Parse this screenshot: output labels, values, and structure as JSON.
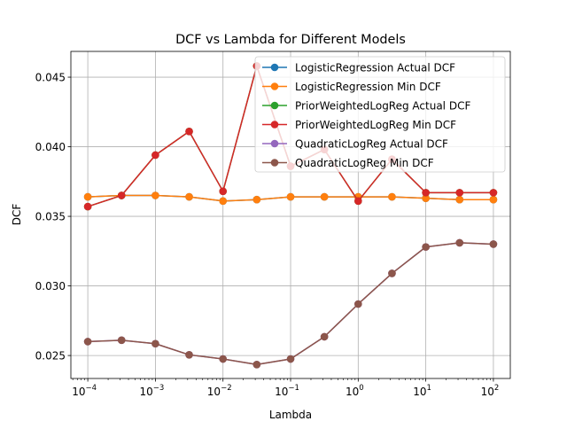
{
  "chart_data": {
    "type": "line",
    "title": "DCF vs Lambda for Different Models",
    "xlabel": "Lambda",
    "ylabel": "DCF",
    "xscale": "log",
    "xlim": [
      5.62e-05,
      177.8
    ],
    "ylim": [
      0.02335,
      0.04685
    ],
    "grid": true,
    "legend_position": "top-right",
    "x": [
      0.0001,
      0.000316,
      0.001,
      0.00316,
      0.01,
      0.0316,
      0.1,
      0.316,
      1,
      3.16,
      10,
      31.6,
      100
    ],
    "x_ticks": [
      {
        "value": 0.0001,
        "base": "10",
        "exp": "−4"
      },
      {
        "value": 0.001,
        "base": "10",
        "exp": "−3"
      },
      {
        "value": 0.01,
        "base": "10",
        "exp": "−2"
      },
      {
        "value": 0.1,
        "base": "10",
        "exp": "−1"
      },
      {
        "value": 1,
        "base": "10",
        "exp": "0"
      },
      {
        "value": 10,
        "base": "10",
        "exp": "1"
      },
      {
        "value": 100,
        "base": "10",
        "exp": "2"
      }
    ],
    "y_ticks": [
      {
        "value": 0.025,
        "label": "0.025"
      },
      {
        "value": 0.03,
        "label": "0.030"
      },
      {
        "value": 0.035,
        "label": "0.035"
      },
      {
        "value": 0.04,
        "label": "0.040"
      },
      {
        "value": 0.045,
        "label": "0.045"
      }
    ],
    "series": [
      {
        "name": "LogisticRegression Actual DCF",
        "color": "#1f77b4",
        "values": [
          0.0364,
          0.0365,
          0.0365,
          0.0364,
          0.0361,
          0.0362,
          0.0364,
          0.0364,
          0.0364,
          0.0364,
          0.0363,
          0.0362,
          0.0362
        ]
      },
      {
        "name": "LogisticRegression Min DCF",
        "color": "#ff7f0e",
        "values": [
          0.0364,
          0.0365,
          0.0365,
          0.0364,
          0.0361,
          0.0362,
          0.0364,
          0.0364,
          0.0364,
          0.0364,
          0.0363,
          0.0362,
          0.0362
        ]
      },
      {
        "name": "PriorWeightedLogReg Actual DCF",
        "color": "#2ca02c",
        "values": [
          0.0357,
          0.0365,
          0.0394,
          0.0411,
          0.0368,
          0.0458,
          0.0386,
          0.0398,
          0.0361,
          0.0391,
          0.0367,
          0.0367,
          0.0367
        ]
      },
      {
        "name": "PriorWeightedLogReg Min DCF",
        "color": "#d62728",
        "values": [
          0.0357,
          0.0365,
          0.0394,
          0.0411,
          0.0368,
          0.0458,
          0.0386,
          0.0398,
          0.0361,
          0.0391,
          0.0367,
          0.0367,
          0.0367
        ]
      },
      {
        "name": "QuadraticLogReg Actual DCF",
        "color": "#9467bd",
        "values": [
          0.026,
          0.0261,
          0.02585,
          0.02505,
          0.02475,
          0.02435,
          0.02475,
          0.02635,
          0.0287,
          0.0309,
          0.0328,
          0.0331,
          0.033
        ]
      },
      {
        "name": "QuadraticLogReg Min DCF",
        "color": "#8c564b",
        "values": [
          0.026,
          0.0261,
          0.02585,
          0.02505,
          0.02475,
          0.02435,
          0.02475,
          0.02635,
          0.0287,
          0.0309,
          0.0328,
          0.0331,
          0.033
        ]
      }
    ]
  }
}
